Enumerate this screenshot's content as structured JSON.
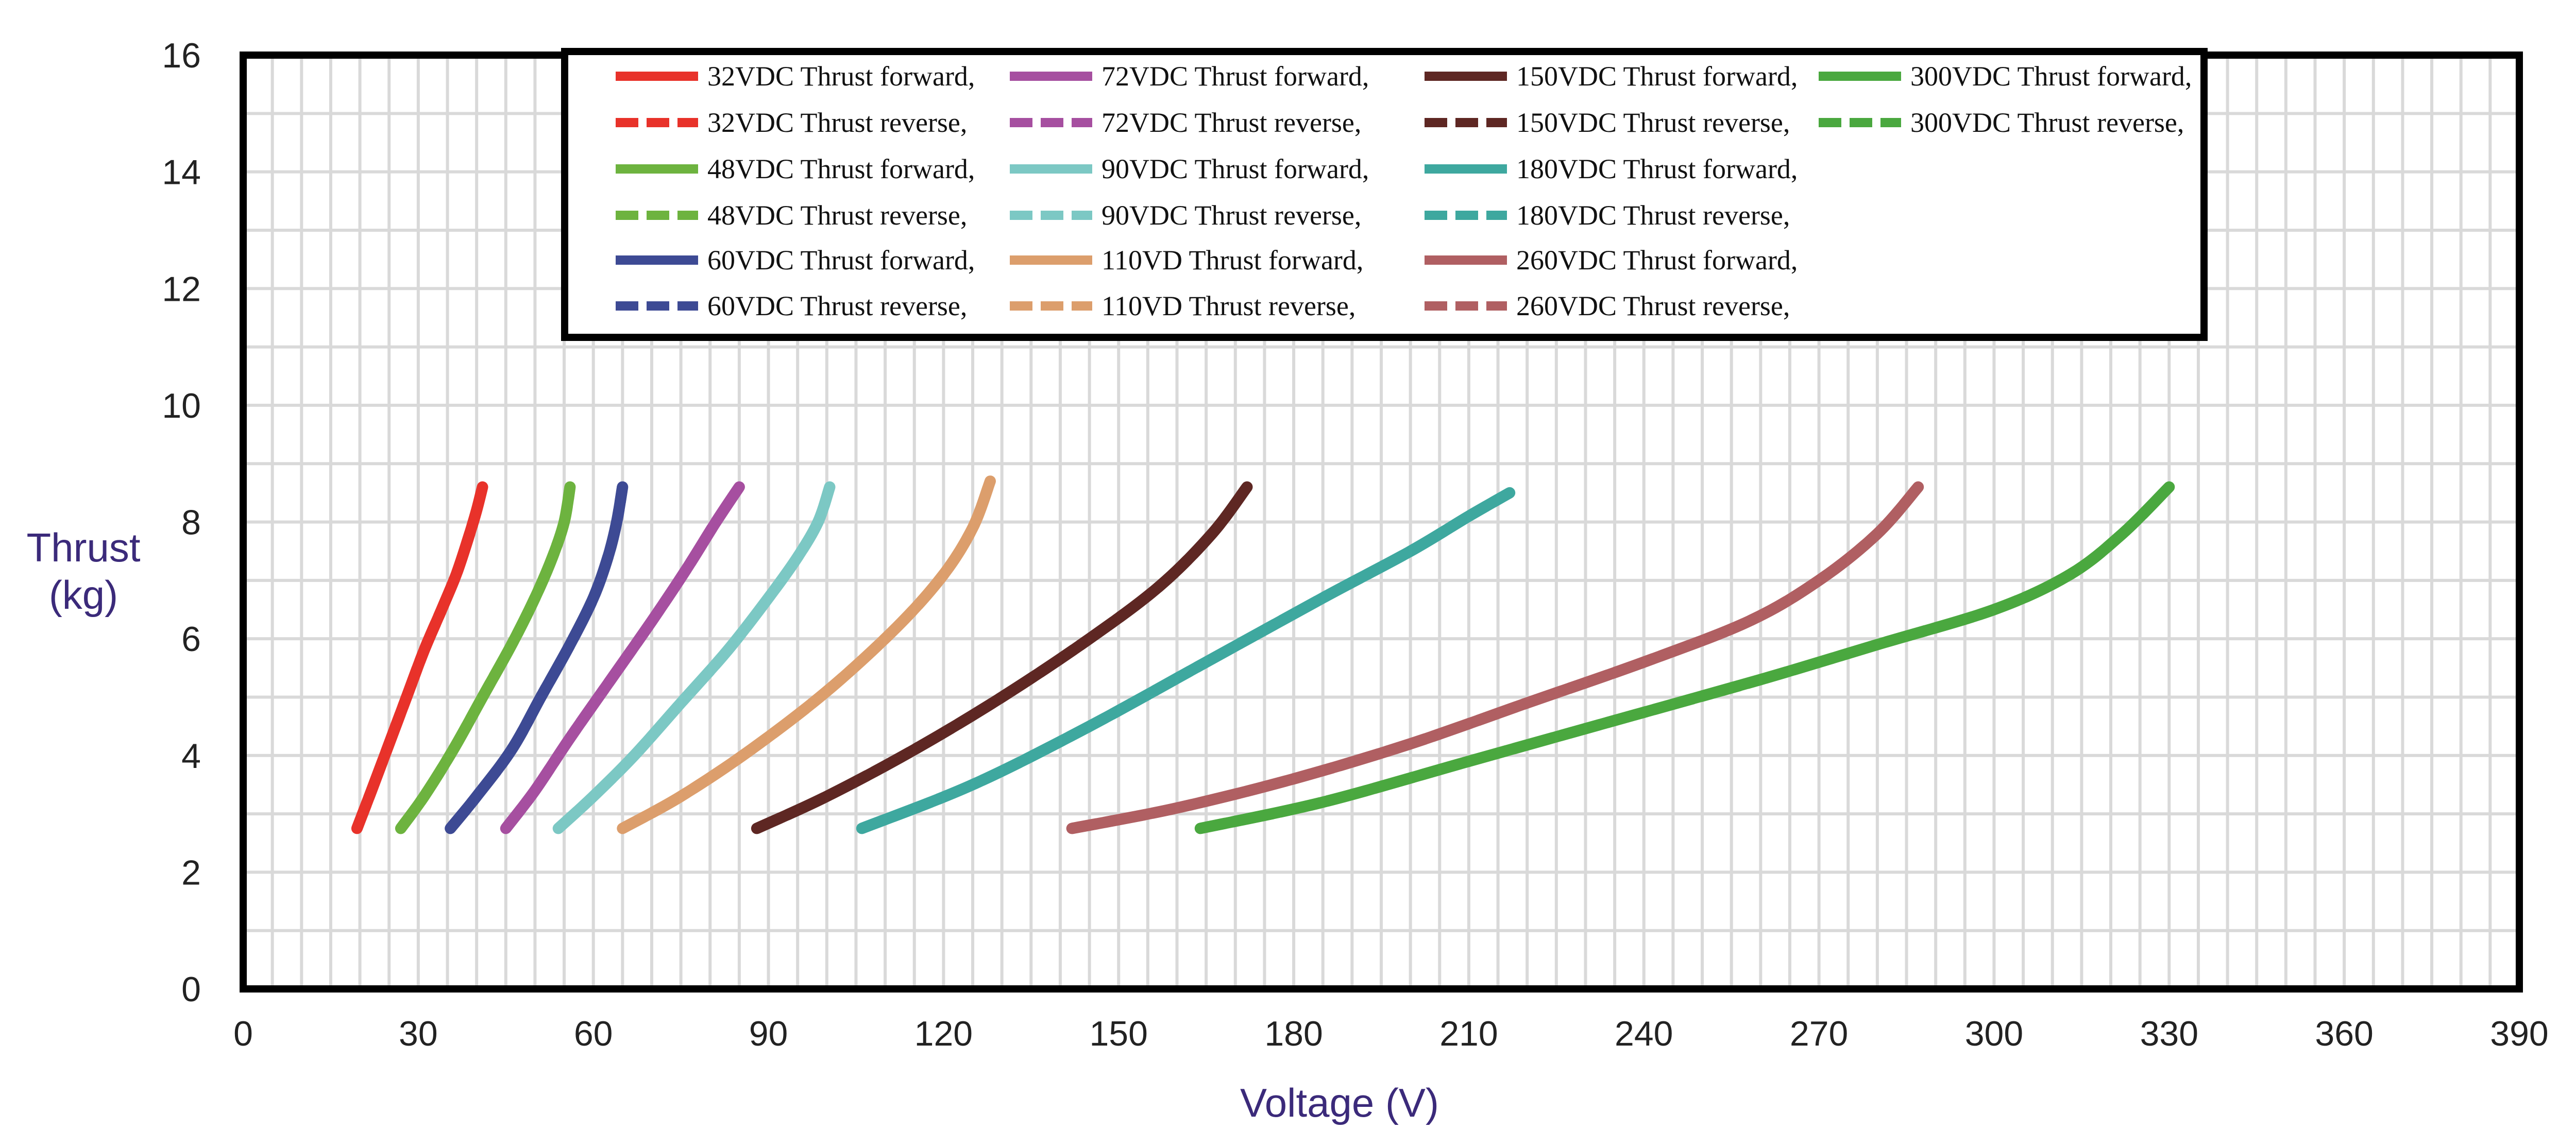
{
  "chart_data": {
    "type": "line",
    "title": "",
    "xlabel": "Voltage (V)",
    "ylabel_lines": [
      "Thrust",
      "(kg)"
    ],
    "xlim": [
      0,
      390
    ],
    "ylim": [
      0,
      16
    ],
    "x_ticks": [
      "0",
      "30",
      "60",
      "90",
      "120",
      "150",
      "180",
      "210",
      "240",
      "270",
      "300",
      "330",
      "360",
      "390"
    ],
    "y_ticks": [
      "0",
      "2",
      "4",
      "6",
      "8",
      "10",
      "12",
      "14",
      "16"
    ],
    "grid": true,
    "legend_position": "top-center",
    "series": [
      {
        "name": "32VDC",
        "forward_label": "32VDC  Thrust forward,",
        "reverse_label": "32VDC  Thrust reverse,",
        "color": "#e8322a",
        "x": [
          19.5,
          22,
          25,
          28,
          31,
          34,
          36.5,
          38.5,
          40,
          41
        ],
        "y": [
          2.75,
          3.4,
          4.2,
          5.0,
          5.8,
          6.5,
          7.1,
          7.7,
          8.2,
          8.6
        ]
      },
      {
        "name": "48VDC",
        "forward_label": "48VDC  Thrust forward,",
        "reverse_label": "48VDC  Thrust reverse,",
        "color": "#6db33f",
        "x": [
          27,
          31,
          36,
          41,
          46,
          50,
          53,
          55,
          56
        ],
        "y": [
          2.75,
          3.3,
          4.1,
          5.0,
          5.9,
          6.7,
          7.4,
          8.0,
          8.6
        ]
      },
      {
        "name": "60VDC",
        "forward_label": "60VDC  Thrust forward,",
        "reverse_label": "60VDC  Thrust reverse,",
        "color": "#3d4a94",
        "x": [
          35.5,
          40,
          46,
          51,
          56,
          60,
          62.5,
          64,
          65
        ],
        "y": [
          2.75,
          3.3,
          4.1,
          5.0,
          5.9,
          6.7,
          7.4,
          8.0,
          8.6
        ]
      },
      {
        "name": "72VDC",
        "forward_label": "72VDC  Thrust forward,",
        "reverse_label": "72VDC  Thrust reverse,",
        "color": "#a64fa0",
        "x": [
          45,
          50,
          56,
          63,
          70,
          76,
          81,
          85
        ],
        "y": [
          2.75,
          3.4,
          4.3,
          5.3,
          6.3,
          7.2,
          8.0,
          8.6
        ]
      },
      {
        "name": "90VDC",
        "forward_label": "90VDC  Thrust forward,",
        "reverse_label": "90VDC  Thrust reverse,",
        "color": "#7cc8c4",
        "x": [
          54,
          60,
          67,
          75,
          83,
          90,
          95,
          98.5,
          100.5
        ],
        "y": [
          2.75,
          3.3,
          4.0,
          4.9,
          5.8,
          6.7,
          7.4,
          8.0,
          8.6
        ]
      },
      {
        "name": "110VD",
        "forward_label": "110VD  Thrust forward,",
        "reverse_label": "110VD  Thrust reverse,",
        "color": "#dc9e6c",
        "x": [
          65,
          75,
          87,
          100,
          112,
          120,
          125,
          128
        ],
        "y": [
          2.75,
          3.3,
          4.1,
          5.1,
          6.2,
          7.1,
          7.9,
          8.7
        ]
      },
      {
        "name": "150VDC",
        "forward_label": "150VDC  Thrust forward,",
        "reverse_label": "150VDC  Thrust reverse,",
        "color": "#5e2723",
        "x": [
          88,
          100,
          115,
          130,
          145,
          157,
          166,
          172
        ],
        "y": [
          2.75,
          3.3,
          4.1,
          5.0,
          6.0,
          6.9,
          7.8,
          8.6
        ]
      },
      {
        "name": "180VDC",
        "forward_label": "180VDC  Thrust forward,",
        "reverse_label": "180VDC  Thrust reverse,",
        "color": "#3ea89f",
        "x": [
          106,
          125,
          145,
          165,
          185,
          200,
          210,
          217
        ],
        "y": [
          2.75,
          3.5,
          4.5,
          5.6,
          6.7,
          7.5,
          8.1,
          8.5
        ]
      },
      {
        "name": "260VDC",
        "forward_label": "260VDC  Thrust forward,",
        "reverse_label": "260VDC  Thrust reverse,",
        "color": "#b05f62",
        "x": [
          142,
          160,
          180,
          200,
          220,
          240,
          258,
          270,
          280,
          287
        ],
        "y": [
          2.75,
          3.1,
          3.6,
          4.2,
          4.9,
          5.6,
          6.3,
          7.0,
          7.8,
          8.6
        ]
      },
      {
        "name": "300VDC",
        "forward_label": "300VDC Thrust forward,",
        "reverse_label": "300VDC Thrust reverse,",
        "color": "#4aa83f",
        "x": [
          164,
          185,
          210,
          235,
          260,
          280,
          300,
          313,
          322,
          330
        ],
        "y": [
          2.75,
          3.2,
          3.9,
          4.6,
          5.3,
          5.9,
          6.5,
          7.1,
          7.8,
          8.6
        ]
      }
    ]
  }
}
